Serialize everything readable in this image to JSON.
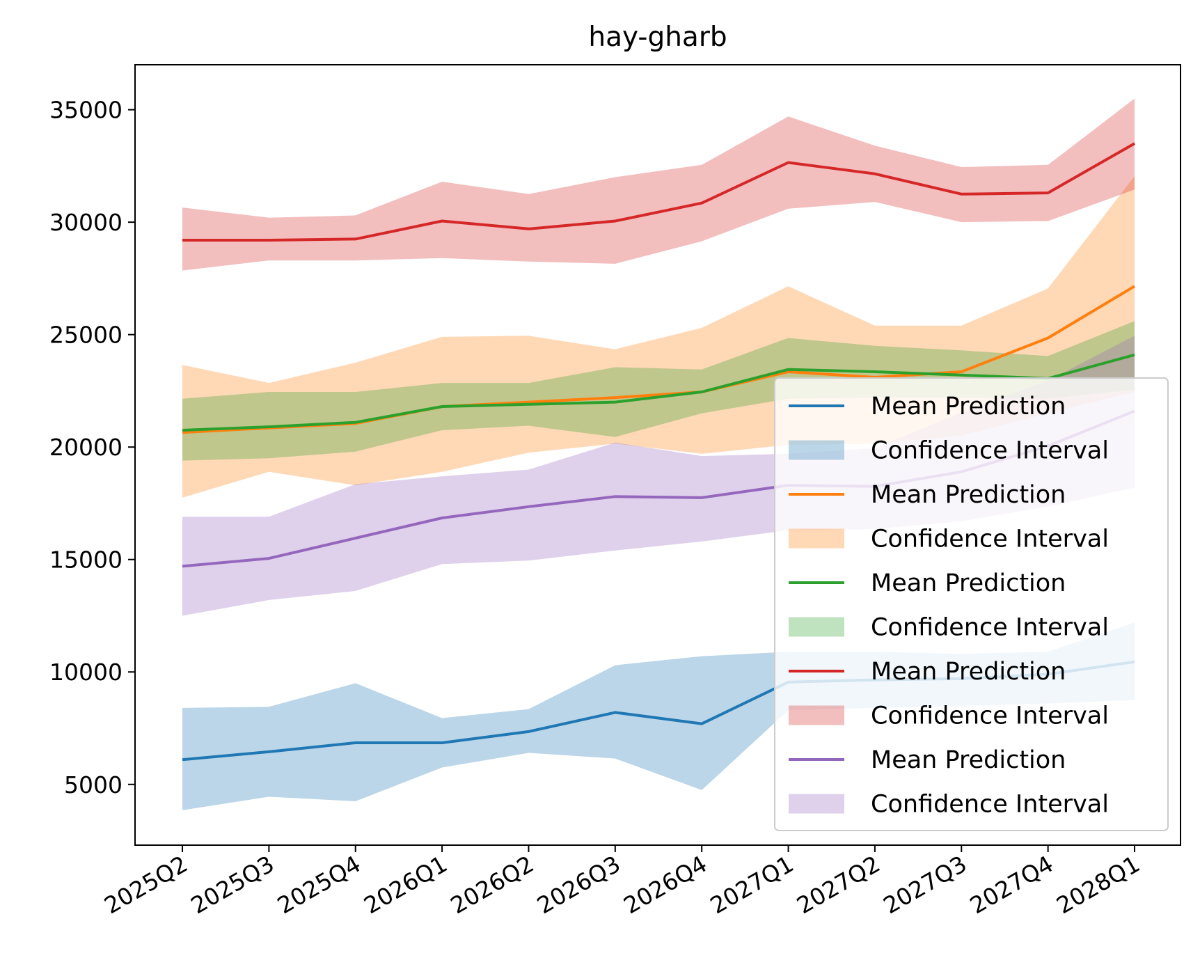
{
  "chart_data": {
    "type": "line",
    "title": "hay-gharb",
    "xlabel": "",
    "ylabel": "",
    "categories": [
      "2025Q2",
      "2025Q3",
      "2025Q4",
      "2026Q1",
      "2026Q2",
      "2026Q3",
      "2026Q4",
      "2027Q1",
      "2027Q2",
      "2027Q3",
      "2027Q4",
      "2028Q1"
    ],
    "ylim": [
      2300,
      37000
    ],
    "yticks": [
      5000,
      10000,
      15000,
      20000,
      25000,
      30000,
      35000
    ],
    "grid": false,
    "legend_position": "lower-right",
    "series": [
      {
        "name": "Mean Prediction",
        "band_name": "Confidence Interval",
        "color": "#1f77b4",
        "mean": [
          6100,
          6450,
          6850,
          6850,
          7350,
          8200,
          7700,
          9550,
          9650,
          9700,
          9900,
          10450
        ],
        "lower": [
          3850,
          4450,
          4250,
          5750,
          6400,
          6150,
          4750,
          8300,
          8400,
          8500,
          8600,
          8750
        ],
        "upper": [
          8400,
          8450,
          9500,
          7950,
          8350,
          10300,
          10700,
          10900,
          10900,
          10800,
          10900,
          12200
        ]
      },
      {
        "name": "Mean Prediction",
        "band_name": "Confidence Interval",
        "color": "#ff7f0e",
        "mean": [
          20650,
          20850,
          21050,
          21800,
          22000,
          22200,
          22450,
          23350,
          23100,
          23350,
          24850,
          27150
        ],
        "lower": [
          17750,
          18900,
          18300,
          18900,
          19750,
          20150,
          19700,
          20100,
          20150,
          20500,
          21500,
          22450
        ],
        "upper": [
          23650,
          22850,
          23750,
          24900,
          24950,
          24350,
          25300,
          27150,
          25400,
          25400,
          27050,
          32050
        ]
      },
      {
        "name": "Mean Prediction",
        "band_name": "Confidence Interval",
        "color": "#2ca02c",
        "mean": [
          20750,
          20900,
          21100,
          21800,
          21900,
          22000,
          22450,
          23450,
          23350,
          23200,
          23050,
          24100
        ],
        "lower": [
          19400,
          19500,
          19800,
          20750,
          20950,
          20450,
          21500,
          22150,
          22200,
          22200,
          22150,
          22550
        ],
        "upper": [
          22150,
          22450,
          22450,
          22850,
          22850,
          23550,
          23450,
          24850,
          24500,
          24300,
          24050,
          25600
        ]
      },
      {
        "name": "Mean Prediction",
        "band_name": "Confidence Interval",
        "color": "#d62728",
        "mean": [
          29200,
          29200,
          29250,
          30050,
          29700,
          30050,
          30850,
          32650,
          32150,
          31250,
          31300,
          33500
        ],
        "lower": [
          27850,
          28300,
          28300,
          28400,
          28250,
          28150,
          29150,
          30600,
          30900,
          30000,
          30050,
          31450
        ],
        "upper": [
          30650,
          30200,
          30300,
          31800,
          31250,
          32000,
          32550,
          34700,
          33400,
          32450,
          32550,
          35500
        ]
      },
      {
        "name": "Mean Prediction",
        "band_name": "Confidence Interval",
        "color": "#9467bd",
        "mean": [
          14700,
          15050,
          15950,
          16850,
          17350,
          17800,
          17750,
          18300,
          18250,
          18900,
          20050,
          21600
        ],
        "lower": [
          12500,
          13200,
          13600,
          14800,
          14950,
          15400,
          15800,
          16300,
          16350,
          16700,
          17350,
          18200
        ],
        "upper": [
          16900,
          16900,
          18350,
          18700,
          19000,
          20200,
          19600,
          19700,
          19950,
          21550,
          22950,
          24950
        ]
      }
    ]
  }
}
